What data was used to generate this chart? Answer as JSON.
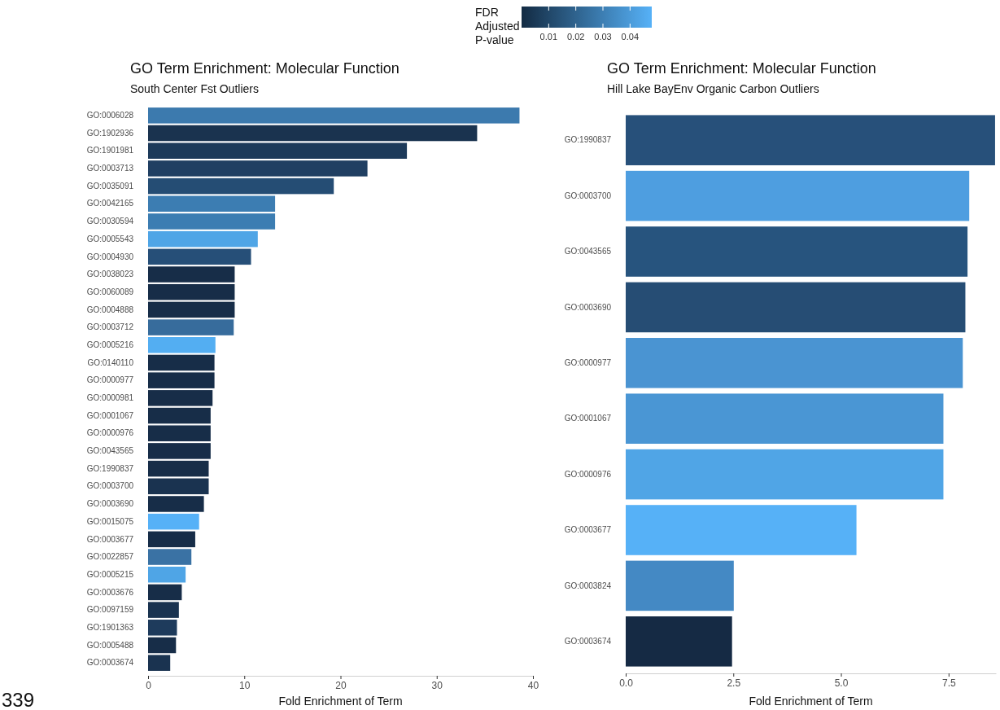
{
  "chart_data": [
    {
      "type": "bar",
      "orientation": "horizontal",
      "title": "GO Term Enrichment: Molecular Function",
      "subtitle": "South Center Fst Outliers",
      "xlabel": "Fold Enrichment of Term",
      "clabel": "FDR\nAdjusted\nP-value",
      "clim": [
        0,
        0.048
      ],
      "cticks": [
        0.01,
        0.02,
        0.03,
        0.04
      ],
      "annotations": [
        "339"
      ],
      "categories": [
        "GO:0006028",
        "GO:1902936",
        "GO:1901981",
        "GO:0003713",
        "GO:0035091",
        "GO:0042165",
        "GO:0030594",
        "GO:0005543",
        "GO:0004930",
        "GO:0038023",
        "GO:0060089",
        "GO:0004888",
        "GO:0003712",
        "GO:0005216",
        "GO:0140110",
        "GO:0000977",
        "GO:0000981",
        "GO:0001067",
        "GO:0000976",
        "GO:0043565",
        "GO:1990837",
        "GO:0003700",
        "GO:0003690",
        "GO:0015075",
        "GO:0003677",
        "GO:0022857",
        "GO:0005215",
        "GO:0003676",
        "GO:0097159",
        "GO:1901363",
        "GO:0005488",
        "GO:0003674"
      ],
      "values": [
        38.6,
        34.2,
        26.9,
        22.8,
        19.3,
        13.2,
        13.2,
        11.4,
        10.7,
        9.0,
        9.0,
        9.0,
        8.9,
        7.0,
        6.9,
        6.9,
        6.7,
        6.5,
        6.5,
        6.5,
        6.3,
        6.3,
        5.8,
        5.3,
        4.9,
        4.5,
        3.9,
        3.5,
        3.2,
        3.0,
        2.9,
        2.3
      ],
      "colors": [
        "#3c7aae",
        "#1a334f",
        "#1d3a5a",
        "#203f62",
        "#254d74",
        "#3c7db2",
        "#3c7db2",
        "#4fa5e6",
        "#264f78",
        "#172d48",
        "#172d48",
        "#172d48",
        "#376c9c",
        "#53aef2",
        "#172d48",
        "#172d48",
        "#172d48",
        "#172d48",
        "#172d48",
        "#172d48",
        "#172d48",
        "#1a3350",
        "#172d48",
        "#56b1f7",
        "#172d48",
        "#3a72a4",
        "#4fa5e6",
        "#172d48",
        "#1a3350",
        "#1e3b5c",
        "#172d48",
        "#1a3350"
      ],
      "xlim": [
        0,
        40
      ],
      "xticks": [
        0,
        10,
        20,
        30,
        40
      ]
    },
    {
      "type": "bar",
      "orientation": "horizontal",
      "title": "GO Term Enrichment: Molecular Function",
      "subtitle": "Hill Lake BayEnv Organic Carbon Outliers",
      "xlabel": "Fold Enrichment of Term",
      "categories": [
        "GO:1990837",
        "GO:0003700",
        "GO:0043565",
        "GO:0003690",
        "GO:0000977",
        "GO:0001067",
        "GO:0000976",
        "GO:0003677",
        "GO:0003824",
        "GO:0003674"
      ],
      "values": [
        8.58,
        7.98,
        7.94,
        7.89,
        7.83,
        7.38,
        7.38,
        5.36,
        2.51,
        2.47
      ],
      "colors": [
        "#27507a",
        "#4e9ee0",
        "#27547e",
        "#264d74",
        "#4a94d2",
        "#4a96d4",
        "#50a5e6",
        "#56b1f7",
        "#4489c4",
        "#152a44"
      ],
      "xlim": [
        0,
        8.6
      ],
      "xticks": [
        {
          "value": 0,
          "label": "0.0"
        },
        {
          "value": 2.5,
          "label": "2.5"
        },
        {
          "value": 5,
          "label": "5.0"
        },
        {
          "value": 7.5,
          "label": "7.5"
        }
      ]
    }
  ]
}
